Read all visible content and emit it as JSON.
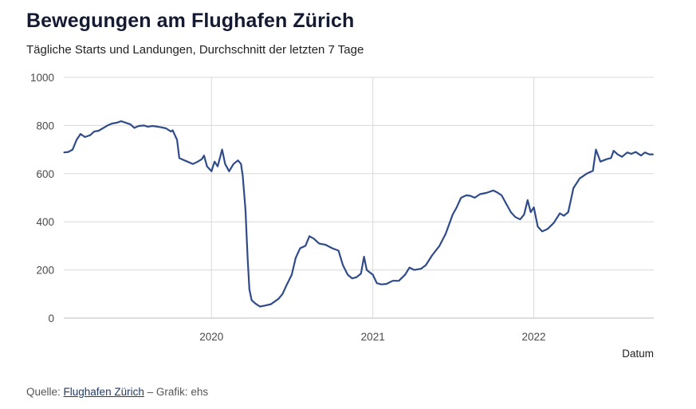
{
  "header": {
    "title": "Bewegungen am Flughafen Zürich",
    "subtitle": "Tägliche Starts und Landungen, Durchschnitt der letzten 7 Tage"
  },
  "source": {
    "prefix": "Quelle: ",
    "link_text": "Flughafen Zürich",
    "suffix": " – Grafik: ehs"
  },
  "colors": {
    "line": "#2f4b8a",
    "grid": "#d9d9d9"
  },
  "chart_data": {
    "type": "line",
    "title": "Bewegungen am Flughafen Zürich",
    "subtitle": "Tägliche Starts und Landungen, Durchschnitt der letzten 7 Tage",
    "xlabel": "Datum",
    "ylabel": "",
    "ylim": [
      0,
      1000
    ],
    "yticks": [
      0,
      200,
      400,
      600,
      800,
      1000
    ],
    "xlim": [
      "2019-01-31",
      "2022-09-30"
    ],
    "xticks": [
      "2020",
      "2021",
      "2022"
    ],
    "grid": true,
    "series": [
      {
        "points": [
          [
            "2019-02-01",
            688
          ],
          [
            "2019-02-10",
            690
          ],
          [
            "2019-02-20",
            700
          ],
          [
            "2019-03-01",
            740
          ],
          [
            "2019-03-10",
            765
          ],
          [
            "2019-03-20",
            752
          ],
          [
            "2019-04-01",
            760
          ],
          [
            "2019-04-10",
            775
          ],
          [
            "2019-04-20",
            778
          ],
          [
            "2019-05-01",
            790
          ],
          [
            "2019-05-10",
            800
          ],
          [
            "2019-05-20",
            808
          ],
          [
            "2019-06-01",
            812
          ],
          [
            "2019-06-10",
            818
          ],
          [
            "2019-06-20",
            812
          ],
          [
            "2019-07-01",
            805
          ],
          [
            "2019-07-10",
            790
          ],
          [
            "2019-07-20",
            798
          ],
          [
            "2019-08-01",
            800
          ],
          [
            "2019-08-10",
            795
          ],
          [
            "2019-08-20",
            798
          ],
          [
            "2019-09-01",
            795
          ],
          [
            "2019-09-10",
            792
          ],
          [
            "2019-09-20",
            788
          ],
          [
            "2019-10-01",
            775
          ],
          [
            "2019-10-05",
            780
          ],
          [
            "2019-10-15",
            740
          ],
          [
            "2019-10-20",
            665
          ],
          [
            "2019-11-01",
            655
          ],
          [
            "2019-11-10",
            648
          ],
          [
            "2019-11-20",
            640
          ],
          [
            "2019-12-01",
            650
          ],
          [
            "2019-12-10",
            660
          ],
          [
            "2019-12-15",
            675
          ],
          [
            "2019-12-22",
            630
          ],
          [
            "2020-01-01",
            610
          ],
          [
            "2020-01-08",
            650
          ],
          [
            "2020-01-15",
            630
          ],
          [
            "2020-01-25",
            700
          ],
          [
            "2020-02-01",
            640
          ],
          [
            "2020-02-10",
            610
          ],
          [
            "2020-02-20",
            640
          ],
          [
            "2020-03-01",
            655
          ],
          [
            "2020-03-08",
            640
          ],
          [
            "2020-03-12",
            590
          ],
          [
            "2020-03-18",
            450
          ],
          [
            "2020-03-23",
            250
          ],
          [
            "2020-03-27",
            120
          ],
          [
            "2020-04-01",
            75
          ],
          [
            "2020-04-10",
            60
          ],
          [
            "2020-04-20",
            48
          ],
          [
            "2020-05-01",
            52
          ],
          [
            "2020-05-15",
            58
          ],
          [
            "2020-06-01",
            80
          ],
          [
            "2020-06-10",
            100
          ],
          [
            "2020-06-20",
            140
          ],
          [
            "2020-07-01",
            180
          ],
          [
            "2020-07-10",
            250
          ],
          [
            "2020-07-20",
            290
          ],
          [
            "2020-08-01",
            300
          ],
          [
            "2020-08-10",
            340
          ],
          [
            "2020-08-20",
            330
          ],
          [
            "2020-09-01",
            310
          ],
          [
            "2020-09-15",
            305
          ],
          [
            "2020-10-01",
            290
          ],
          [
            "2020-10-15",
            280
          ],
          [
            "2020-10-25",
            220
          ],
          [
            "2020-11-05",
            180
          ],
          [
            "2020-11-15",
            165
          ],
          [
            "2020-11-25",
            170
          ],
          [
            "2020-12-05",
            185
          ],
          [
            "2020-12-12",
            255
          ],
          [
            "2020-12-18",
            200
          ],
          [
            "2020-12-25",
            190
          ],
          [
            "2021-01-01",
            180
          ],
          [
            "2021-01-10",
            145
          ],
          [
            "2021-01-20",
            140
          ],
          [
            "2021-02-01",
            142
          ],
          [
            "2021-02-15",
            155
          ],
          [
            "2021-03-01",
            155
          ],
          [
            "2021-03-15",
            180
          ],
          [
            "2021-03-25",
            210
          ],
          [
            "2021-04-05",
            200
          ],
          [
            "2021-04-20",
            205
          ],
          [
            "2021-05-01",
            220
          ],
          [
            "2021-05-15",
            260
          ],
          [
            "2021-06-01",
            300
          ],
          [
            "2021-06-15",
            350
          ],
          [
            "2021-07-01",
            430
          ],
          [
            "2021-07-10",
            460
          ],
          [
            "2021-07-20",
            500
          ],
          [
            "2021-08-01",
            510
          ],
          [
            "2021-08-10",
            508
          ],
          [
            "2021-08-20",
            500
          ],
          [
            "2021-09-01",
            515
          ],
          [
            "2021-09-15",
            520
          ],
          [
            "2021-10-01",
            530
          ],
          [
            "2021-10-10",
            522
          ],
          [
            "2021-10-20",
            510
          ],
          [
            "2021-11-01",
            470
          ],
          [
            "2021-11-10",
            440
          ],
          [
            "2021-11-20",
            420
          ],
          [
            "2021-12-01",
            410
          ],
          [
            "2021-12-10",
            430
          ],
          [
            "2021-12-18",
            490
          ],
          [
            "2021-12-25",
            440
          ],
          [
            "2022-01-01",
            460
          ],
          [
            "2022-01-10",
            380
          ],
          [
            "2022-01-20",
            360
          ],
          [
            "2022-02-01",
            370
          ],
          [
            "2022-02-15",
            395
          ],
          [
            "2022-03-01",
            435
          ],
          [
            "2022-03-10",
            425
          ],
          [
            "2022-03-20",
            440
          ],
          [
            "2022-04-01",
            540
          ],
          [
            "2022-04-15",
            580
          ],
          [
            "2022-05-01",
            600
          ],
          [
            "2022-05-15",
            612
          ],
          [
            "2022-05-22",
            700
          ],
          [
            "2022-06-01",
            650
          ],
          [
            "2022-06-15",
            660
          ],
          [
            "2022-06-25",
            665
          ],
          [
            "2022-07-01",
            695
          ],
          [
            "2022-07-10",
            680
          ],
          [
            "2022-07-20",
            670
          ],
          [
            "2022-08-01",
            688
          ],
          [
            "2022-08-10",
            682
          ],
          [
            "2022-08-20",
            690
          ],
          [
            "2022-09-01",
            675
          ],
          [
            "2022-09-10",
            688
          ],
          [
            "2022-09-20",
            680
          ],
          [
            "2022-09-28",
            680
          ]
        ]
      }
    ]
  }
}
